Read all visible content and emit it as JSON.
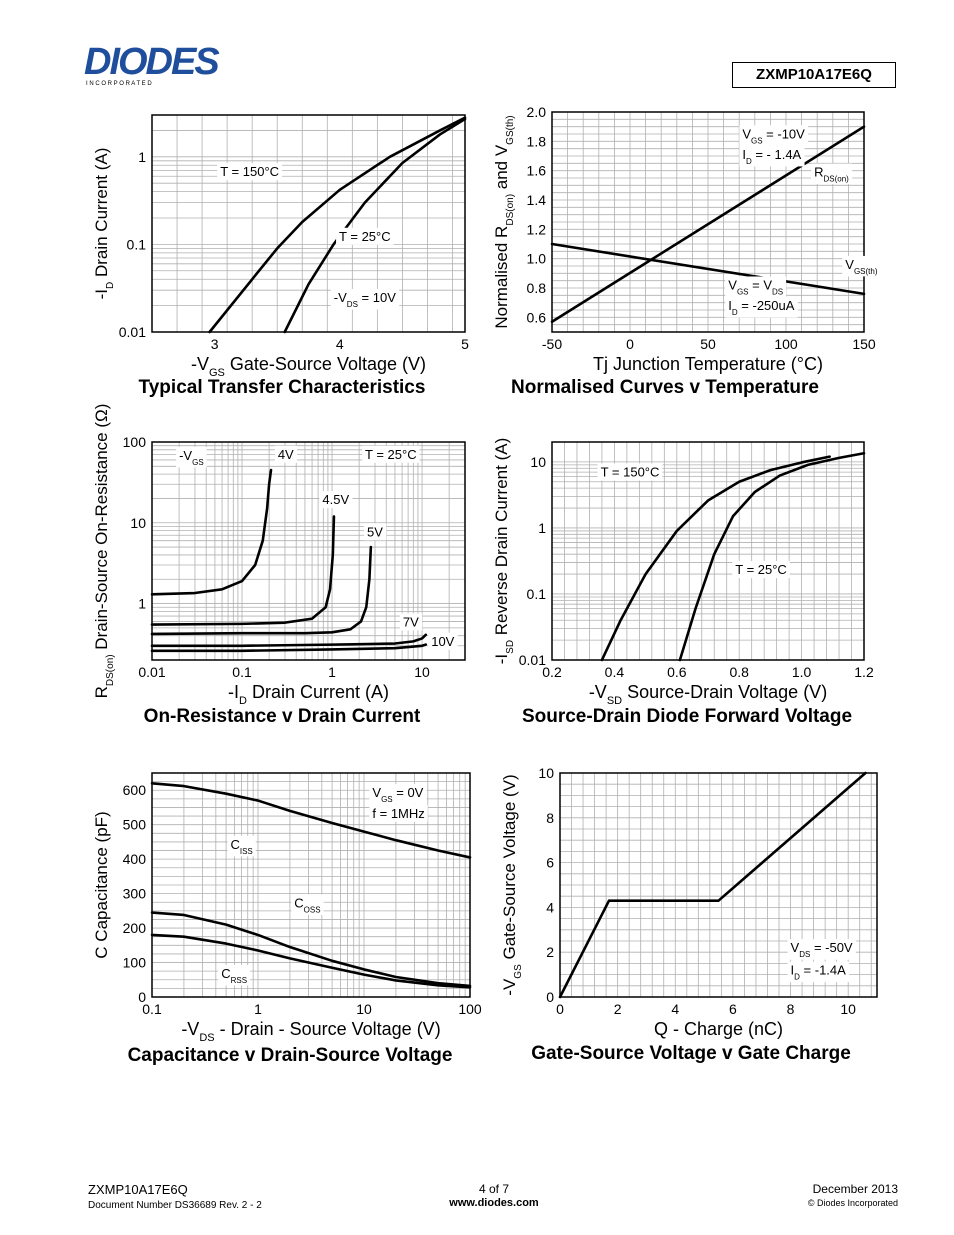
{
  "header": {
    "logo_text": "DIODES",
    "logo_subtext": "I N C O R P O R A T E D",
    "part_number": "ZXMP10A17E6Q"
  },
  "footer": {
    "part_number": "ZXMP10A17E6Q",
    "document_number": "Document Number DS36689  Rev. 2 - 2",
    "page": "4 of 7",
    "website": "www.diodes.com",
    "date": "December 2013",
    "copyright": "© Diodes Incorporated"
  },
  "colors": {
    "ink": "#000000",
    "grid": "#b0b0b0",
    "paper": "#ffffff"
  },
  "chart_data": [
    {
      "id": "transfer",
      "type": "line",
      "title": "Typical Transfer Characteristics",
      "xlabel_main": "-V",
      "xlabel_sub": "GS",
      "xlabel_tail": " Gate-Source Voltage (V)",
      "ylabel_main": "-I",
      "ylabel_sub": "D",
      "ylabel_tail": " Drain Current (A)",
      "xscale": "linear",
      "yscale": "log",
      "xlim": [
        2.5,
        5
      ],
      "ylim": [
        0.01,
        3
      ],
      "xticks": [
        3,
        4,
        5
      ],
      "xtick_labels": [
        "3",
        "4",
        "5"
      ],
      "yticks": [
        0.01,
        0.1,
        1
      ],
      "ytick_labels": [
        "0.01",
        "0.1",
        "1"
      ],
      "grid": true,
      "series": [
        {
          "name": "T = 150°C",
          "x": [
            2.96,
            3.3,
            3.5,
            3.7,
            4.0,
            4.4,
            4.8,
            5.0
          ],
          "y": [
            0.01,
            0.04,
            0.09,
            0.18,
            0.42,
            1.0,
            2.0,
            2.8
          ]
        },
        {
          "name": "T = 25°C",
          "x": [
            3.56,
            3.75,
            3.95,
            4.2,
            4.5,
            4.8,
            5.0
          ],
          "y": [
            0.01,
            0.035,
            0.1,
            0.3,
            0.85,
            1.8,
            2.7
          ]
        }
      ],
      "annotations": [
        {
          "parts": [
            {
              "t": "T = 150°C"
            }
          ],
          "x": 3.28,
          "y": 0.6,
          "anchor": "middle"
        },
        {
          "parts": [
            {
              "t": "T = 25°C"
            }
          ],
          "x": 4.2,
          "y": 0.11,
          "anchor": "middle"
        },
        {
          "parts": [
            {
              "t": "-V"
            },
            {
              "t": "DS",
              "sub": true
            },
            {
              "t": " = 10V"
            }
          ],
          "x": 4.2,
          "y": 0.022,
          "anchor": "middle"
        }
      ]
    },
    {
      "id": "norm",
      "type": "line",
      "title": "Normalised Curves v Temperature",
      "xlabel_main": "Tj",
      "xlabel_sub": "",
      "xlabel_tail": " Junction Temperature (°C)",
      "ylabel_parts": [
        {
          "t": "Normalised R"
        },
        {
          "t": "DS(on)",
          "sub": true
        },
        {
          "t": " and V"
        },
        {
          "t": "GS(th)",
          "sub": true
        }
      ],
      "xscale": "linear",
      "yscale": "linear",
      "xlim": [
        -50,
        150
      ],
      "ylim": [
        0.5,
        2.0
      ],
      "xticks": [
        -50,
        0,
        50,
        100,
        150
      ],
      "xtick_labels": [
        "-50",
        "0",
        "50",
        "100",
        "150"
      ],
      "yticks": [
        0.6,
        0.8,
        1.0,
        1.2,
        1.4,
        1.6,
        1.8,
        2.0
      ],
      "ytick_labels": [
        "0.6",
        "0.8",
        "1.0",
        "1.2",
        "1.4",
        "1.6",
        "1.8",
        "2.0"
      ],
      "grid": true,
      "series": [
        {
          "name": "R_DS(on)",
          "x": [
            -50,
            150
          ],
          "y": [
            0.57,
            1.9
          ]
        },
        {
          "name": "V_GS(th)",
          "x": [
            -50,
            150
          ],
          "y": [
            1.1,
            0.76
          ]
        }
      ],
      "annotations": [
        {
          "parts": [
            {
              "t": "V"
            },
            {
              "t": "GS",
              "sub": true
            },
            {
              "t": " = -10V"
            }
          ],
          "x": 72,
          "y": 1.82,
          "anchor": "start"
        },
        {
          "parts": [
            {
              "t": "I"
            },
            {
              "t": "D",
              "sub": true
            },
            {
              "t": " = - 1.4A"
            }
          ],
          "x": 72,
          "y": 1.68,
          "anchor": "start"
        },
        {
          "parts": [
            {
              "t": "R"
            },
            {
              "t": "DS(on)",
              "sub": true
            }
          ],
          "x": 118,
          "y": 1.56,
          "anchor": "start"
        },
        {
          "parts": [
            {
              "t": "V"
            },
            {
              "t": "GS(th)",
              "sub": true
            }
          ],
          "x": 138,
          "y": 0.93,
          "anchor": "start"
        },
        {
          "parts": [
            {
              "t": "V"
            },
            {
              "t": "GS",
              "sub": true
            },
            {
              "t": " = V"
            },
            {
              "t": "DS",
              "sub": true
            }
          ],
          "x": 63,
          "y": 0.79,
          "anchor": "start"
        },
        {
          "parts": [
            {
              "t": "I"
            },
            {
              "t": "D",
              "sub": true
            },
            {
              "t": " = -250uA"
            }
          ],
          "x": 63,
          "y": 0.65,
          "anchor": "start"
        }
      ]
    },
    {
      "id": "onres",
      "type": "line",
      "title": "On-Resistance v Drain Current",
      "xlabel_main": "-I",
      "xlabel_sub": "D",
      "xlabel_tail": " Drain Current (A)",
      "ylabel_parts": [
        {
          "t": "R"
        },
        {
          "t": "DS(on)",
          "sub": true
        },
        {
          "t": " Drain-Source On-Resistance (Ω)"
        }
      ],
      "xscale": "log",
      "yscale": "log",
      "xlim": [
        0.01,
        30
      ],
      "ylim": [
        0.2,
        100
      ],
      "xticks": [
        0.01,
        0.1,
        1,
        10
      ],
      "xtick_labels": [
        "0.01",
        "0.1",
        "1",
        "10"
      ],
      "yticks": [
        1,
        10,
        100
      ],
      "ytick_labels": [
        "1",
        "10",
        "100"
      ],
      "grid": true,
      "series": [
        {
          "name": "4V",
          "x": [
            0.01,
            0.03,
            0.06,
            0.1,
            0.14,
            0.17,
            0.19,
            0.2,
            0.21
          ],
          "y": [
            1.3,
            1.35,
            1.5,
            1.9,
            3.0,
            6.0,
            15,
            30,
            45
          ]
        },
        {
          "name": "4.5V",
          "x": [
            0.01,
            0.1,
            0.3,
            0.6,
            0.85,
            0.95,
            1.02,
            1.05
          ],
          "y": [
            0.55,
            0.56,
            0.58,
            0.65,
            0.9,
            1.5,
            4.0,
            12
          ]
        },
        {
          "name": "5V",
          "x": [
            0.01,
            0.1,
            0.5,
            1.0,
            1.6,
            2.1,
            2.4,
            2.6,
            2.7
          ],
          "y": [
            0.42,
            0.43,
            0.43,
            0.44,
            0.48,
            0.6,
            0.9,
            2.0,
            5.0
          ]
        },
        {
          "name": "7V",
          "x": [
            0.01,
            0.1,
            1,
            5,
            8,
            10,
            11
          ],
          "y": [
            0.3,
            0.3,
            0.31,
            0.32,
            0.34,
            0.37,
            0.41
          ]
        },
        {
          "name": "10V",
          "x": [
            0.01,
            0.1,
            1,
            5,
            10,
            11
          ],
          "y": [
            0.26,
            0.26,
            0.27,
            0.28,
            0.3,
            0.31
          ]
        }
      ],
      "annotations": [
        {
          "parts": [
            {
              "t": "-V"
            },
            {
              "t": "GS",
              "sub": true
            }
          ],
          "x": 0.02,
          "y": 60,
          "anchor": "start"
        },
        {
          "parts": [
            {
              "t": "4V"
            }
          ],
          "x": 0.25,
          "y": 62,
          "anchor": "start"
        },
        {
          "parts": [
            {
              "t": "T = 25°C"
            }
          ],
          "x": 4.5,
          "y": 62,
          "anchor": "middle"
        },
        {
          "parts": [
            {
              "t": "4.5V"
            }
          ],
          "x": 1.1,
          "y": 17,
          "anchor": "middle"
        },
        {
          "parts": [
            {
              "t": "5V"
            }
          ],
          "x": 3.0,
          "y": 6.8,
          "anchor": "middle"
        },
        {
          "parts": [
            {
              "t": "7V"
            }
          ],
          "x": 7.5,
          "y": 0.52,
          "anchor": "middle"
        },
        {
          "parts": [
            {
              "t": "10V"
            }
          ],
          "x": 17,
          "y": 0.3,
          "anchor": "middle"
        }
      ]
    },
    {
      "id": "diode",
      "type": "line",
      "title": "Source-Drain Diode Forward Voltage",
      "xlabel_main": "-V",
      "xlabel_sub": "SD",
      "xlabel_tail": " Source-Drain Voltage (V)",
      "ylabel_main": "-I",
      "ylabel_sub": "SD",
      "ylabel_tail": " Reverse Drain Current (A)",
      "xscale": "linear",
      "yscale": "log",
      "xlim": [
        0.2,
        1.2
      ],
      "ylim": [
        0.01,
        20
      ],
      "xticks": [
        0.2,
        0.4,
        0.6,
        0.8,
        1.0,
        1.2
      ],
      "xtick_labels": [
        "0.2",
        "0.4",
        "0.6",
        "0.8",
        "1.0",
        "1.2"
      ],
      "yticks": [
        0.01,
        0.1,
        1,
        10
      ],
      "ytick_labels": [
        "0.01",
        "0.1",
        "1",
        "10"
      ],
      "grid": true,
      "series": [
        {
          "name": "T = 150°C",
          "x": [
            0.36,
            0.42,
            0.5,
            0.6,
            0.7,
            0.8,
            0.9,
            1.0,
            1.09
          ],
          "y": [
            0.01,
            0.04,
            0.2,
            0.9,
            2.6,
            5.0,
            7.5,
            9.8,
            12
          ]
        },
        {
          "name": "T = 25°C",
          "x": [
            0.61,
            0.66,
            0.72,
            0.78,
            0.85,
            0.93,
            1.02,
            1.12,
            1.2
          ],
          "y": [
            0.01,
            0.06,
            0.4,
            1.5,
            3.5,
            6.2,
            9.0,
            11.5,
            13.5
          ]
        }
      ],
      "annotations": [
        {
          "parts": [
            {
              "t": "T = 150°C"
            }
          ],
          "x": 0.45,
          "y": 6.0,
          "anchor": "middle"
        },
        {
          "parts": [
            {
              "t": "T = 25°C"
            }
          ],
          "x": 0.87,
          "y": 0.2,
          "anchor": "middle"
        }
      ]
    },
    {
      "id": "cap",
      "type": "line",
      "title": "Capacitance v Drain-Source Voltage",
      "xlabel_main": "-V",
      "xlabel_sub": "DS",
      "xlabel_tail": " - Drain - Source Voltage (V)",
      "ylabel_main": "C",
      "ylabel_sub": "",
      "ylabel_tail": "  Capacitance (pF)",
      "xscale": "log",
      "yscale": "linear",
      "xlim": [
        0.1,
        100
      ],
      "ylim": [
        0,
        650
      ],
      "xticks": [
        0.1,
        1,
        10,
        100
      ],
      "xtick_labels": [
        "0.1",
        "1",
        "10",
        "100"
      ],
      "yticks": [
        0,
        100,
        200,
        300,
        400,
        500,
        600
      ],
      "ytick_labels": [
        "0",
        "100",
        "200",
        "300",
        "400",
        "500",
        "600"
      ],
      "grid": true,
      "series": [
        {
          "name": "CISS",
          "x": [
            0.1,
            0.2,
            0.5,
            1,
            2,
            5,
            10,
            20,
            50,
            100
          ],
          "y": [
            620,
            612,
            590,
            570,
            540,
            505,
            480,
            455,
            425,
            405
          ]
        },
        {
          "name": "COSS",
          "x": [
            0.1,
            0.2,
            0.5,
            1,
            2,
            5,
            10,
            20,
            50,
            100
          ],
          "y": [
            245,
            238,
            210,
            180,
            145,
            105,
            80,
            58,
            40,
            32
          ]
        },
        {
          "name": "CRSS",
          "x": [
            0.1,
            0.2,
            0.5,
            1,
            2,
            5,
            10,
            20,
            50,
            100
          ],
          "y": [
            180,
            175,
            155,
            135,
            112,
            85,
            65,
            48,
            34,
            28
          ]
        }
      ],
      "annotations": [
        {
          "parts": [
            {
              "t": "V"
            },
            {
              "t": "GS",
              "sub": true
            },
            {
              "t": " = 0V"
            }
          ],
          "x": 12,
          "y": 580,
          "anchor": "start"
        },
        {
          "parts": [
            {
              "t": "f = 1MHz"
            }
          ],
          "x": 12,
          "y": 520,
          "anchor": "start"
        },
        {
          "parts": [
            {
              "t": "C"
            },
            {
              "t": "ISS",
              "sub": true
            }
          ],
          "x": 0.55,
          "y": 430,
          "anchor": "start"
        },
        {
          "parts": [
            {
              "t": "C"
            },
            {
              "t": "OSS",
              "sub": true
            }
          ],
          "x": 2.2,
          "y": 260,
          "anchor": "start"
        },
        {
          "parts": [
            {
              "t": "C"
            },
            {
              "t": "RSS",
              "sub": true
            }
          ],
          "x": 0.45,
          "y": 55,
          "anchor": "start"
        }
      ]
    },
    {
      "id": "gate",
      "type": "line",
      "title": "Gate-Source Voltage v Gate Charge",
      "xlabel_main": "Q",
      "xlabel_sub": "",
      "xlabel_tail": " - Charge (nC)",
      "ylabel_main": "-V",
      "ylabel_sub": "GS",
      "ylabel_tail": " Gate-Source Voltage (V)",
      "xscale": "linear",
      "yscale": "linear",
      "xlim": [
        0,
        11
      ],
      "ylim": [
        0,
        10
      ],
      "xticks": [
        0,
        2,
        4,
        6,
        8,
        10
      ],
      "xtick_labels": [
        "0",
        "2",
        "4",
        "6",
        "8",
        "10"
      ],
      "yticks": [
        0,
        2,
        4,
        6,
        8,
        10
      ],
      "ytick_labels": [
        "0",
        "2",
        "4",
        "6",
        "8",
        "10"
      ],
      "grid": true,
      "series": [
        {
          "name": "VGS",
          "x": [
            0,
            1.7,
            5.5,
            10.6
          ],
          "y": [
            0,
            4.3,
            4.3,
            10
          ]
        }
      ],
      "annotations": [
        {
          "parts": [
            {
              "t": "V"
            },
            {
              "t": "DS",
              "sub": true
            },
            {
              "t": " = -50V"
            }
          ],
          "x": 8.0,
          "y": 2.0,
          "anchor": "start"
        },
        {
          "parts": [
            {
              "t": "I"
            },
            {
              "t": "D",
              "sub": true
            },
            {
              "t": " = -1.4A"
            }
          ],
          "x": 8.0,
          "y": 1.0,
          "anchor": "start"
        }
      ]
    }
  ]
}
